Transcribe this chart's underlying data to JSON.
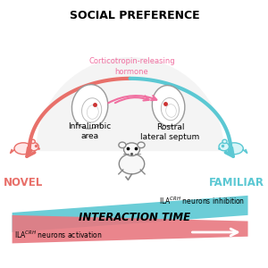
{
  "title": "SOCIAL PREFERENCE",
  "novel_label": "NOVEL",
  "familiar_label": "FAMILIAR",
  "crh_label": "Corticotropin-releasing\nhormone",
  "infralimbic_label": "Infralimbic\narea",
  "rostral_label": "Rostral\nlateral septum",
  "interaction_time_label": "INTERACTION TIME",
  "novel_color": "#E8706A",
  "familiar_color": "#5BC8D3",
  "crh_color": "#F06FA0",
  "arc_color_novel": "#E8706A",
  "arc_color_familiar": "#5BC8D3",
  "bg_color": "#FFFFFF",
  "teal_color": "#5BC8D3",
  "pink_color": "#E87880",
  "gray_bg": "#E8E8E8"
}
